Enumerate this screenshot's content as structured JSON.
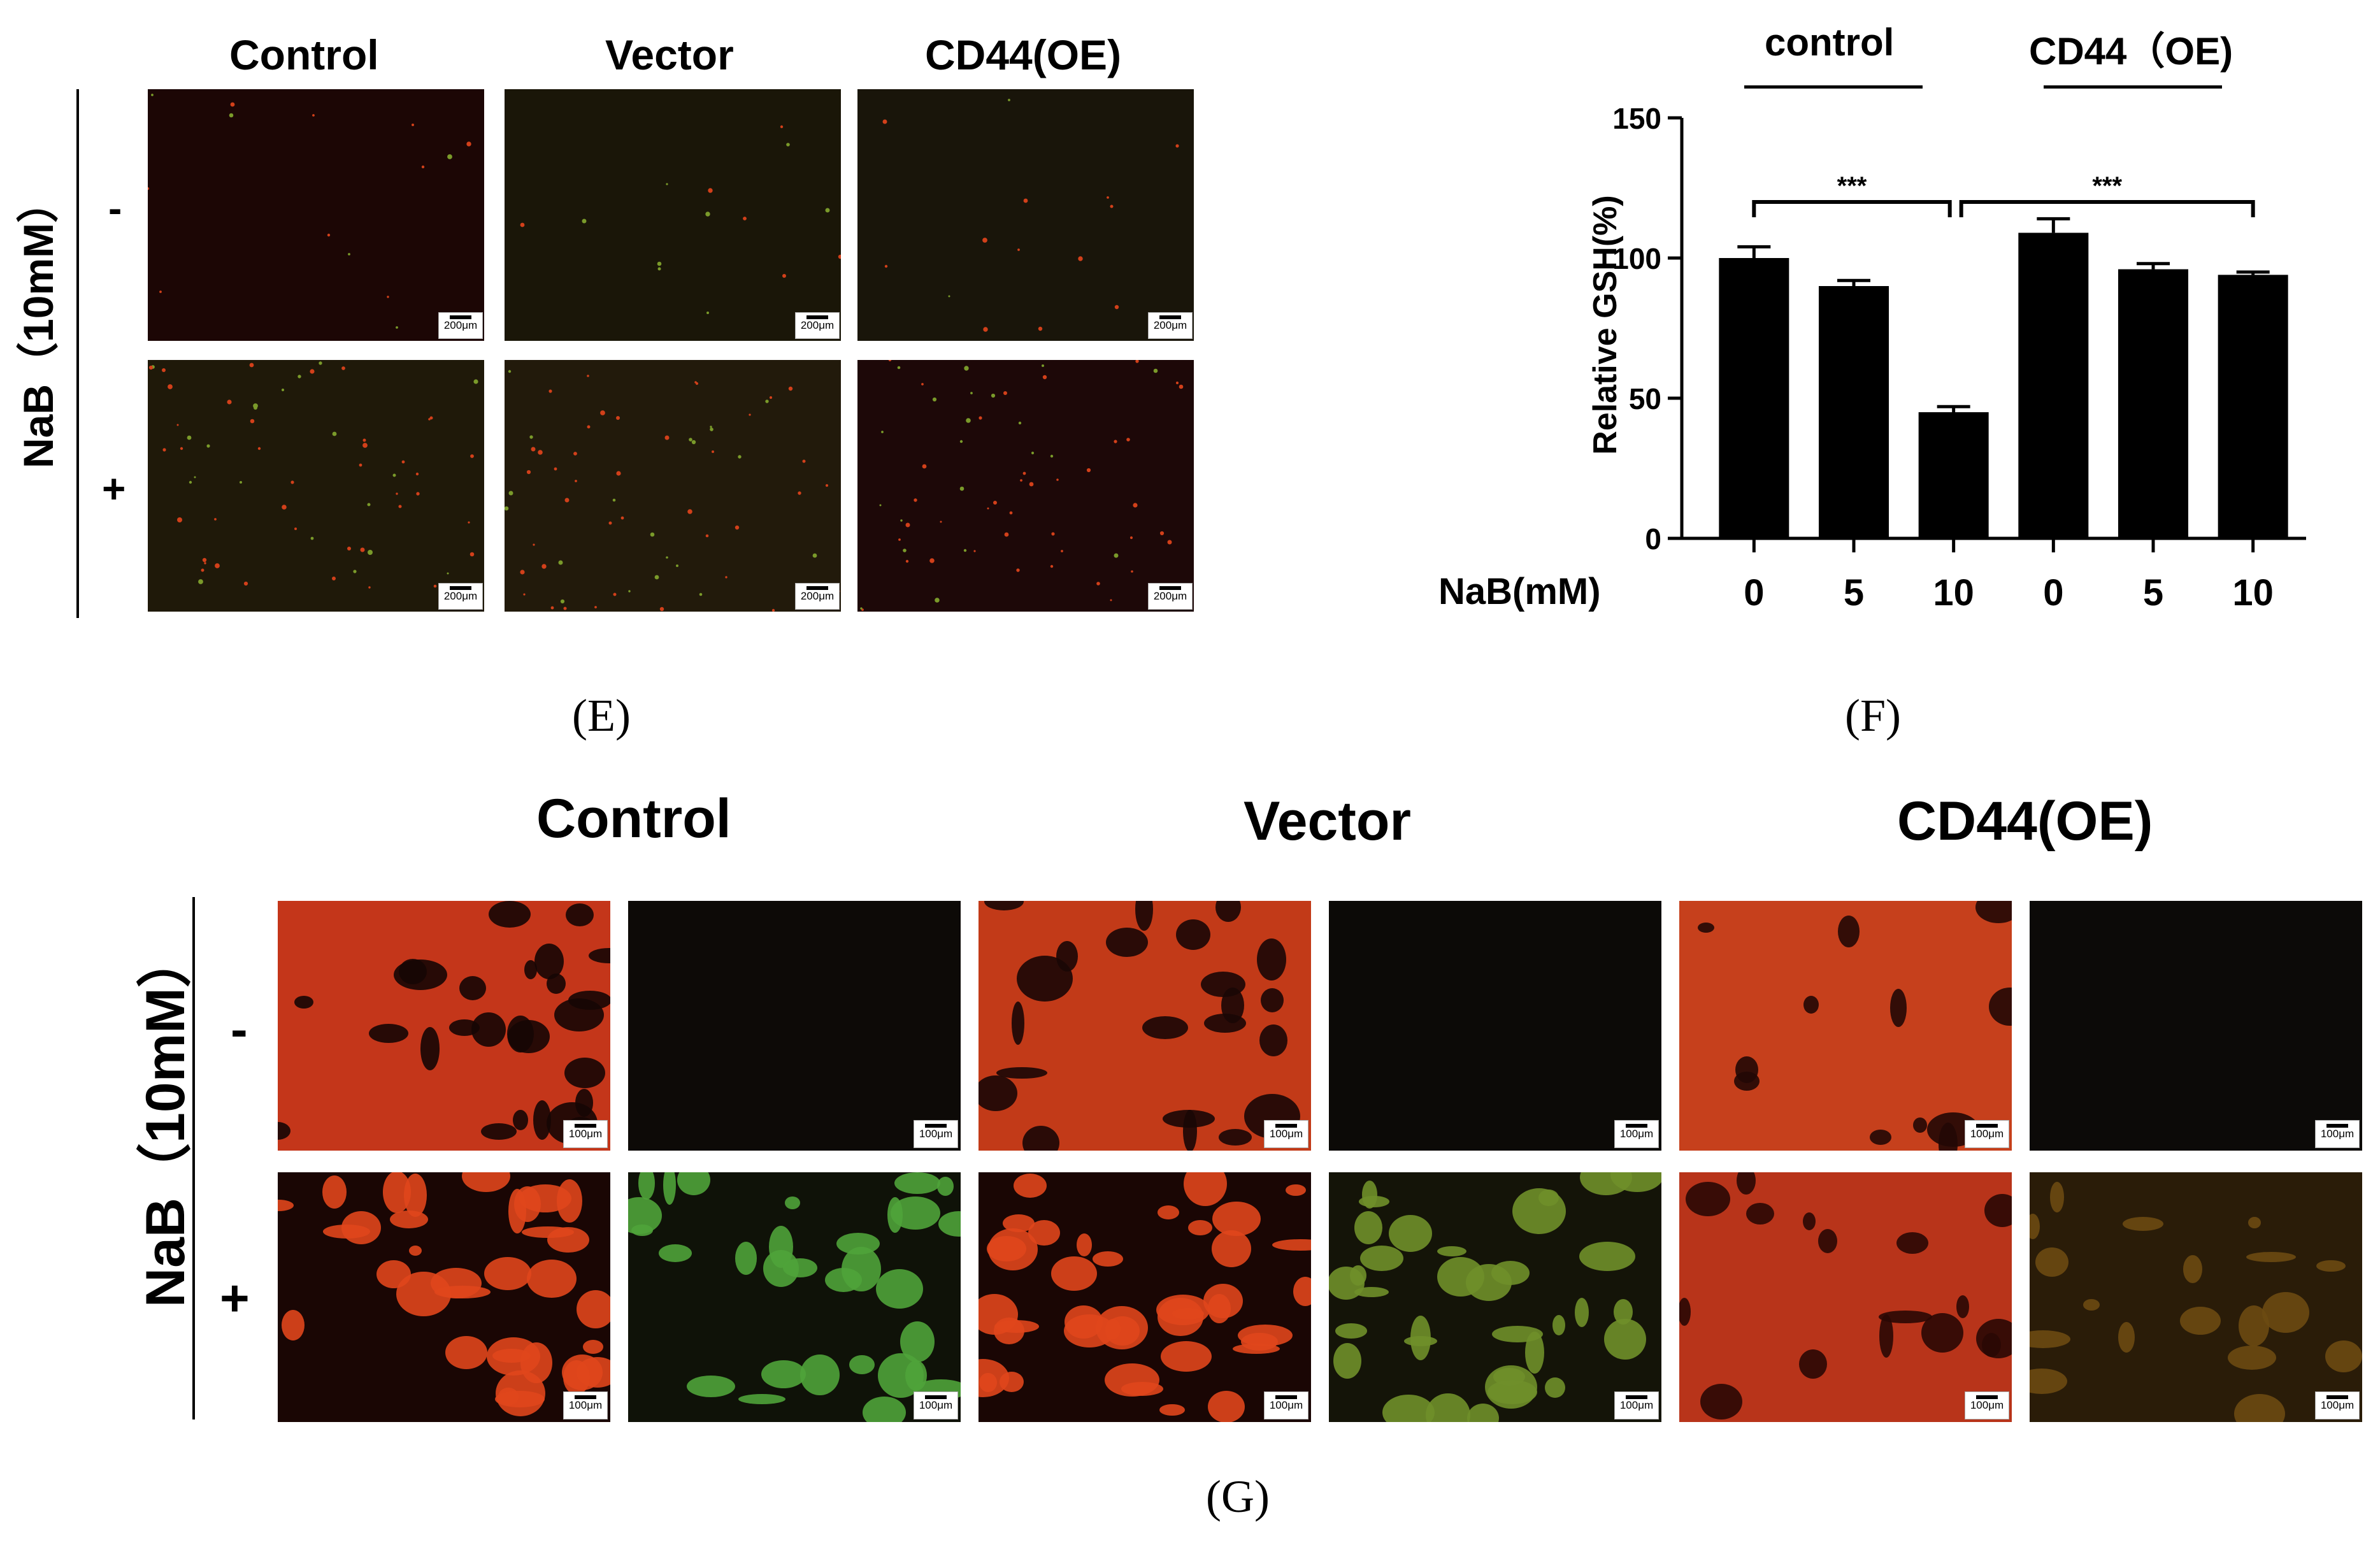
{
  "figure": {
    "panel_e": {
      "caption": "(E)",
      "column_headers": [
        "Control",
        "Vector",
        "CD44(OE)"
      ],
      "row_axis_label": "NaB（10mM）",
      "row_labels": [
        "-",
        "+"
      ],
      "scale_bar": "200μm"
    },
    "panel_f": {
      "caption": "(F)",
      "group_labels": [
        "control",
        "CD44（OE)"
      ],
      "significance": [
        "***",
        "***"
      ],
      "x_axis_prefix": "NaB(mM)"
    },
    "panel_g": {
      "caption": "(G)",
      "column_headers": [
        "Control",
        "Vector",
        "CD44(OE)"
      ],
      "row_axis_label": "NaB（10mM）",
      "row_labels": [
        "-",
        "+"
      ],
      "scale_bar": "100μm"
    }
  },
  "chart_data": {
    "type": "bar",
    "categories": [
      "0",
      "5",
      "10",
      "0",
      "5",
      "10"
    ],
    "values": [
      100,
      90,
      45,
      109,
      96,
      94
    ],
    "errors": [
      4,
      2,
      2,
      5,
      2,
      1
    ],
    "ylabel": "Relative GSH(%)",
    "xlabel": "NaB(mM)",
    "ylim": [
      0,
      150
    ],
    "yticks": [
      0,
      50,
      100,
      150
    ],
    "bar_color": "#000000",
    "grid": false
  },
  "colors": {
    "fluor_red": "#e0461c",
    "fluor_green": "#4fa33a",
    "dark_bg": "#140804"
  }
}
